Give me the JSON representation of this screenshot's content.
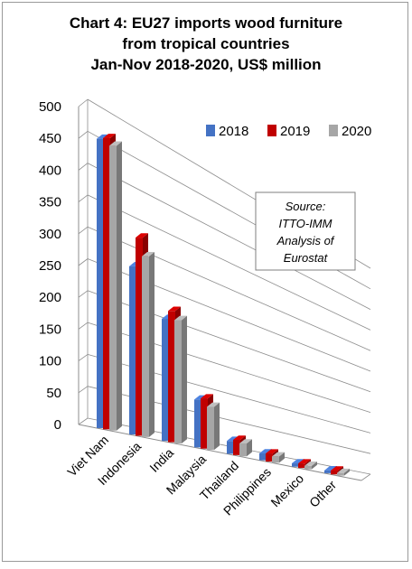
{
  "chart_data": {
    "type": "bar",
    "title_lines": [
      "Chart 4: EU27 imports wood furniture",
      "from tropical countries",
      "Jan-Nov 2018-2020, US$ million"
    ],
    "categories": [
      "Viet Nam",
      "Indonesia",
      "India",
      "Malaysia",
      "Thailand",
      "Philippines",
      "Mexico",
      "Other"
    ],
    "series": [
      {
        "name": "2018",
        "values": [
          455,
          270,
          200,
          80,
          22,
          12,
          6,
          5
        ]
      },
      {
        "name": "2019",
        "values": [
          458,
          318,
          215,
          84,
          26,
          14,
          8,
          7
        ]
      },
      {
        "name": "2020",
        "values": [
          448,
          290,
          202,
          72,
          22,
          11,
          6,
          5
        ]
      }
    ],
    "ylim": [
      0,
      500
    ],
    "yticks": [
      0,
      50,
      100,
      150,
      200,
      250,
      300,
      350,
      400,
      450,
      500
    ],
    "grid": true,
    "legend_position": "top-right",
    "colors": {
      "2018": "#4472c4",
      "2019": "#c00000",
      "2020": "#a6a6a6"
    },
    "annotation_lines": [
      "Source:",
      "ITTO-IMM",
      "Analysis of",
      "Eurostat"
    ]
  }
}
